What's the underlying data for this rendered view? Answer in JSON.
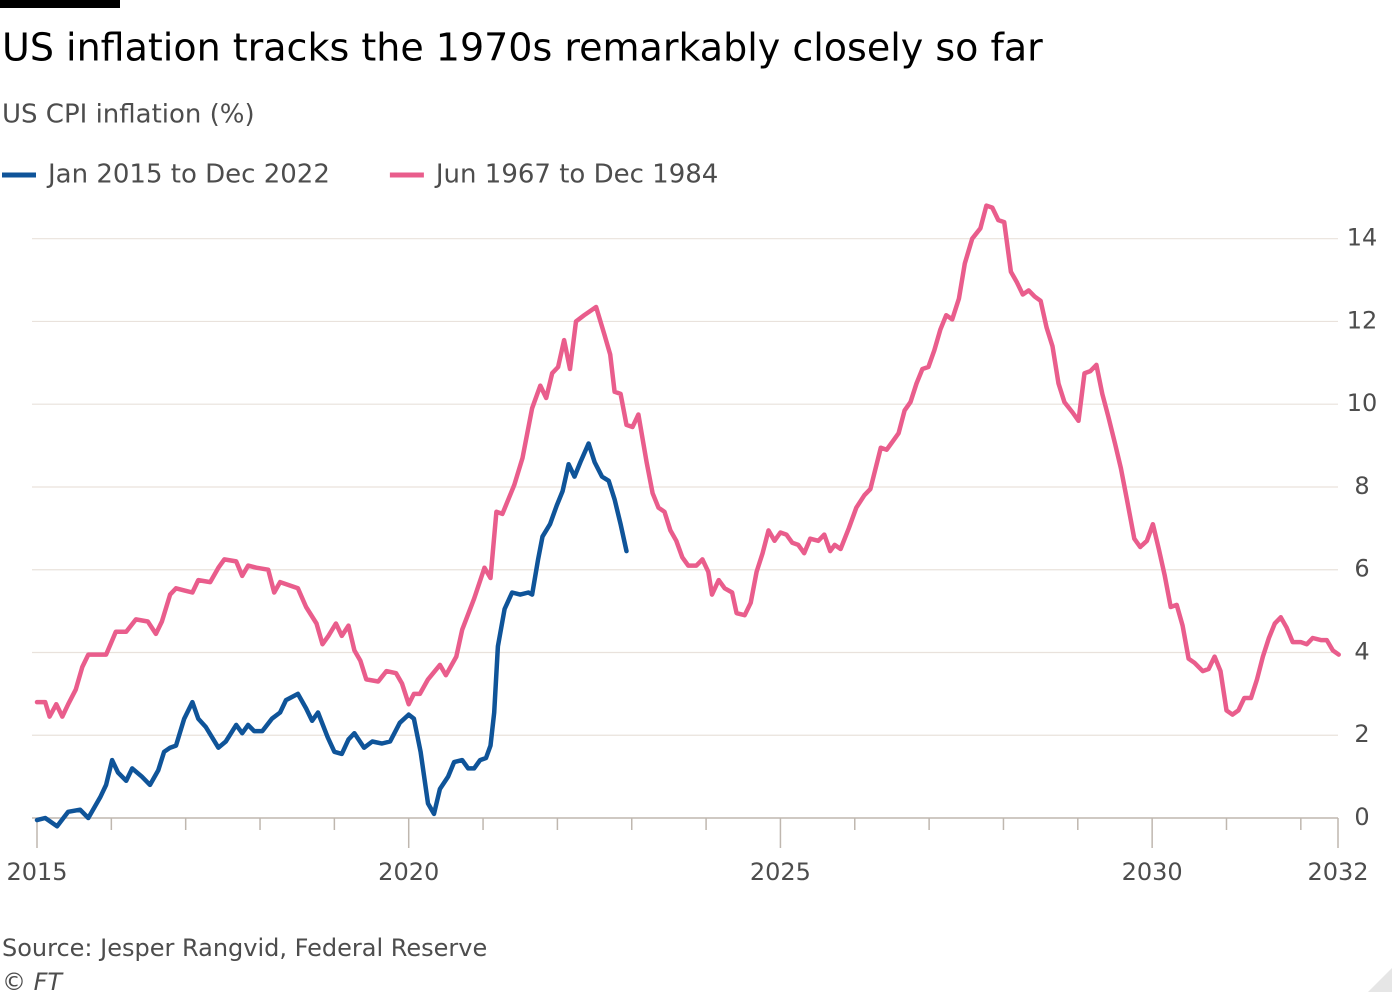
{
  "chart_data": {
    "type": "line",
    "title": "US inflation tracks the 1970s remarkably closely so far",
    "subtitle": "US CPI inflation (%)",
    "source": "Source: Jesper Rangvid, Federal Reserve",
    "credit": "© FT",
    "xlim": [
      2015,
      2032.5
    ],
    "xticks": [
      2015,
      2020,
      2025,
      2030,
      {
        "value": 2032.5,
        "label": "2032"
      }
    ],
    "xminor_ticks": [
      2016,
      2017,
      2018,
      2019,
      2021,
      2022,
      2023,
      2024,
      2026,
      2027,
      2028,
      2029,
      2031,
      2032
    ],
    "ylim": [
      -0.5,
      15
    ],
    "yticks": [
      0,
      2,
      4,
      6,
      8,
      10,
      12,
      14
    ],
    "grid": true,
    "legend": "top-left",
    "series": [
      {
        "name": "Jan 2015 to Dec 2022",
        "color": "#0f5499",
        "x": [
          2015.0,
          2015.11,
          2015.27,
          2015.42,
          2015.58,
          2015.69,
          2015.85,
          2015.93,
          2016.01,
          2016.09,
          2016.2,
          2016.28,
          2016.41,
          2016.52,
          2016.63,
          2016.71,
          2016.79,
          2016.87,
          2016.98,
          2017.09,
          2017.17,
          2017.27,
          2017.44,
          2017.54,
          2017.68,
          2017.76,
          2017.84,
          2017.92,
          2018.03,
          2018.16,
          2018.27,
          2018.35,
          2018.51,
          2018.62,
          2018.7,
          2018.78,
          2018.91,
          2019.0,
          2019.1,
          2019.19,
          2019.27,
          2019.4,
          2019.51,
          2019.64,
          2019.75,
          2019.88,
          2020.0,
          2020.07,
          2020.16,
          2020.26,
          2020.34,
          2020.42,
          2020.53,
          2020.61,
          2020.72,
          2020.8,
          2020.88,
          2020.96,
          2021.04,
          2021.1,
          2021.15,
          2021.2,
          2021.29,
          2021.39,
          2021.5,
          2021.61,
          2021.66,
          2021.74,
          2021.8,
          2021.9,
          2021.99,
          2022.07,
          2022.15,
          2022.23,
          2022.31,
          2022.42,
          2022.5,
          2022.6,
          2022.69,
          2022.77,
          2022.85,
          2022.93
        ],
        "values": [
          -0.05,
          0.0,
          -0.2,
          0.15,
          0.2,
          0.0,
          0.5,
          0.8,
          1.4,
          1.1,
          0.9,
          1.2,
          1.0,
          0.8,
          1.15,
          1.6,
          1.7,
          1.75,
          2.4,
          2.8,
          2.4,
          2.2,
          1.7,
          1.85,
          2.25,
          2.05,
          2.25,
          2.1,
          2.1,
          2.4,
          2.55,
          2.85,
          3.0,
          2.65,
          2.35,
          2.55,
          1.95,
          1.6,
          1.55,
          1.9,
          2.05,
          1.7,
          1.85,
          1.8,
          1.85,
          2.3,
          2.5,
          2.4,
          1.6,
          0.35,
          0.1,
          0.7,
          1.0,
          1.35,
          1.4,
          1.2,
          1.2,
          1.4,
          1.45,
          1.75,
          2.55,
          4.15,
          5.05,
          5.45,
          5.4,
          5.45,
          5.4,
          6.25,
          6.8,
          7.1,
          7.55,
          7.9,
          8.55,
          8.25,
          8.6,
          9.05,
          8.6,
          8.25,
          8.15,
          7.7,
          7.1,
          6.45
        ]
      },
      {
        "name": "Jun 1967 to Dec 1984",
        "color": "#e95d8c",
        "x": [
          2015.0,
          2015.11,
          2015.17,
          2015.26,
          2015.34,
          2015.42,
          2015.52,
          2015.61,
          2015.69,
          2015.79,
          2015.93,
          2016.06,
          2016.2,
          2016.33,
          2016.49,
          2016.6,
          2016.68,
          2016.79,
          2016.87,
          2016.98,
          2017.09,
          2017.17,
          2017.33,
          2017.44,
          2017.52,
          2017.68,
          2017.76,
          2017.84,
          2017.95,
          2018.11,
          2018.19,
          2018.27,
          2018.51,
          2018.62,
          2018.76,
          2018.84,
          2018.92,
          2019.02,
          2019.1,
          2019.19,
          2019.27,
          2019.35,
          2019.43,
          2019.59,
          2019.7,
          2019.83,
          2019.91,
          2020.0,
          2020.07,
          2020.15,
          2020.26,
          2020.42,
          2020.5,
          2020.64,
          2020.72,
          2020.88,
          2021.02,
          2021.1,
          2021.18,
          2021.26,
          2021.42,
          2021.53,
          2021.66,
          2021.77,
          2021.85,
          2021.93,
          2022.01,
          2022.09,
          2022.17,
          2022.25,
          2022.36,
          2022.52,
          2022.63,
          2022.71,
          2022.77,
          2022.85,
          2022.93,
          2023.01,
          2023.09,
          2023.2,
          2023.28,
          2023.36,
          2023.44,
          2023.52,
          2023.6,
          2023.68,
          2023.76,
          2023.87,
          2023.95,
          2024.03,
          2024.08,
          2024.17,
          2024.25,
          2024.35,
          2024.41,
          2024.52,
          2024.6,
          2024.68,
          2024.76,
          2024.84,
          2024.92,
          2025.0,
          2025.08,
          2025.16,
          2025.24,
          2025.32,
          2025.4,
          2025.51,
          2025.59,
          2025.67,
          2025.73,
          2025.81,
          2025.92,
          2026.02,
          2026.13,
          2026.21,
          2026.35,
          2026.43,
          2026.51,
          2026.59,
          2026.67,
          2026.75,
          2026.83,
          2026.91,
          2026.99,
          2027.07,
          2027.15,
          2027.23,
          2027.31,
          2027.4,
          2027.48,
          2027.58,
          2027.69,
          2027.77,
          2027.85,
          2027.93,
          2028.01,
          2028.1,
          2028.18,
          2028.26,
          2028.34,
          2028.42,
          2028.5,
          2028.58,
          2028.66,
          2028.74,
          2028.82,
          2028.93,
          2029.01,
          2029.09,
          2029.17,
          2029.25,
          2029.33,
          2029.41,
          2029.5,
          2029.58,
          2029.66,
          2029.76,
          2029.84,
          2029.93,
          2030.01,
          2030.09,
          2030.17,
          2030.25,
          2030.33,
          2030.41,
          2030.49,
          2030.57,
          2030.68,
          2030.76,
          2030.84,
          2030.92,
          2031.0,
          2031.08,
          2031.16,
          2031.24,
          2031.33,
          2031.41,
          2031.49,
          2031.57,
          2031.65,
          2031.73,
          2031.81,
          2031.89,
          2032.0,
          2032.08,
          2032.16,
          2032.27,
          2032.35,
          2032.43,
          2032.51
        ],
        "values": [
          2.8,
          2.8,
          2.45,
          2.75,
          2.45,
          2.75,
          3.1,
          3.65,
          3.95,
          3.95,
          3.95,
          4.5,
          4.5,
          4.8,
          4.75,
          4.45,
          4.75,
          5.4,
          5.55,
          5.5,
          5.45,
          5.75,
          5.7,
          6.05,
          6.25,
          6.2,
          5.85,
          6.1,
          6.05,
          6.0,
          5.45,
          5.7,
          5.55,
          5.1,
          4.7,
          4.2,
          4.4,
          4.7,
          4.4,
          4.65,
          4.05,
          3.8,
          3.35,
          3.3,
          3.55,
          3.5,
          3.25,
          2.75,
          3.0,
          3.0,
          3.35,
          3.7,
          3.45,
          3.9,
          4.55,
          5.3,
          6.05,
          5.8,
          7.4,
          7.35,
          8.05,
          8.7,
          9.9,
          10.45,
          10.15,
          10.75,
          10.9,
          11.55,
          10.85,
          12.0,
          12.15,
          12.35,
          11.7,
          11.2,
          10.3,
          10.25,
          9.5,
          9.45,
          9.75,
          8.6,
          7.85,
          7.5,
          7.4,
          6.95,
          6.7,
          6.3,
          6.1,
          6.1,
          6.25,
          5.95,
          5.4,
          5.75,
          5.55,
          5.45,
          4.95,
          4.9,
          5.2,
          5.95,
          6.4,
          6.95,
          6.7,
          6.9,
          6.85,
          6.65,
          6.6,
          6.4,
          6.75,
          6.7,
          6.85,
          6.45,
          6.6,
          6.5,
          7.0,
          7.5,
          7.8,
          7.95,
          8.95,
          8.9,
          9.1,
          9.3,
          9.85,
          10.05,
          10.5,
          10.85,
          10.9,
          11.3,
          11.8,
          12.15,
          12.05,
          12.55,
          13.4,
          14.0,
          14.25,
          14.8,
          14.75,
          14.45,
          14.4,
          13.2,
          12.95,
          12.65,
          12.75,
          12.6,
          12.5,
          11.85,
          11.4,
          10.5,
          10.05,
          9.8,
          9.6,
          10.75,
          10.8,
          10.95,
          10.25,
          9.7,
          9.05,
          8.45,
          7.7,
          6.75,
          6.55,
          6.7,
          7.1,
          6.5,
          5.85,
          5.1,
          5.15,
          4.65,
          3.85,
          3.75,
          3.55,
          3.6,
          3.9,
          3.55,
          2.6,
          2.5,
          2.6,
          2.9,
          2.9,
          3.35,
          3.9,
          4.35,
          4.7,
          4.85,
          4.6,
          4.25,
          4.25,
          4.2,
          4.35,
          4.3,
          4.3,
          4.05,
          3.95
        ]
      }
    ]
  }
}
